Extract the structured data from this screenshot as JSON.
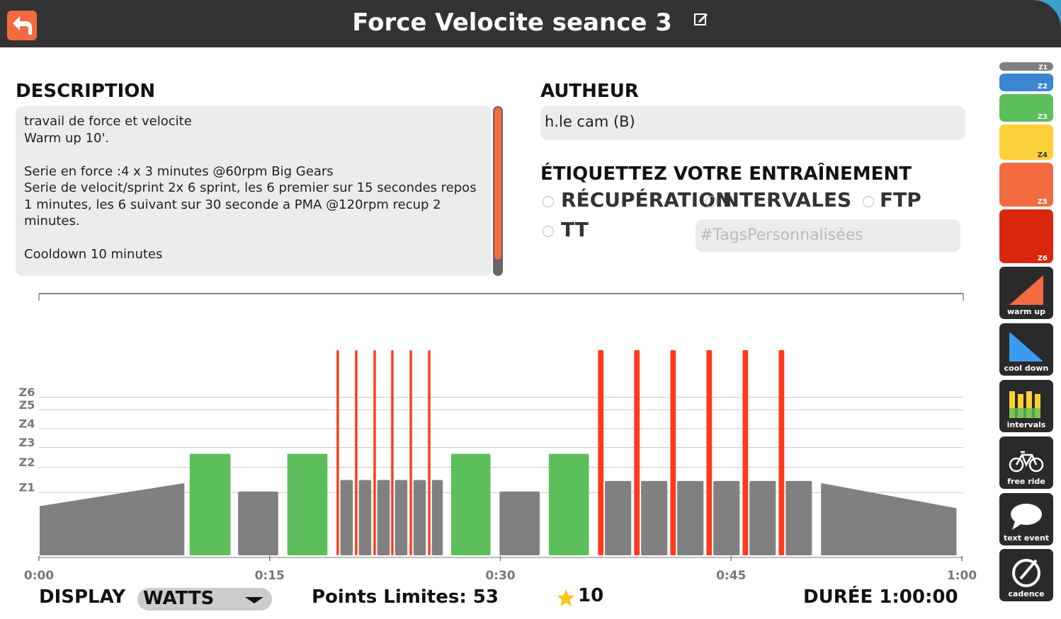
{
  "header": {
    "title": "Force Velocite seance 3"
  },
  "description": {
    "heading": "DESCRIPTION",
    "text": "travail de force et velocite\nWarm up 10'.\n\nSerie en  force :4 x 3 minutes @60rpm Big Gears\nSerie de velocit/sprint  2x 6 sprint, les 6 premier sur 15 secondes repos 1 minutes, les 6 suivant sur 30 seconde a PMA @120rpm recup 2 minutes.\n\nCooldown 10 minutes"
  },
  "author": {
    "heading": "AUTHEUR",
    "name": "h.le cam (B)"
  },
  "tags": {
    "heading": "ÉTIQUETTEZ VOTRE ENTRAÎNEMENT",
    "options": [
      "RÉCUPÉRATION",
      "INTERVALES",
      "FTP",
      "TT"
    ],
    "custom_placeholder": "#TagsPersonnalisées"
  },
  "sidebar": {
    "zones": [
      "Z1",
      "Z2",
      "Z3",
      "Z4",
      "Z5",
      "Z6"
    ],
    "tools": [
      "warm up",
      "cool down",
      "intervals",
      "free ride",
      "text event",
      "cadence"
    ]
  },
  "footer": {
    "display_label": "DISPLAY",
    "display_value": "WATTS",
    "points": "Points Limites: 53",
    "stars": "10",
    "duration": "DURÉE 1:00:00"
  },
  "chart_data": {
    "type": "workout",
    "xlim": [
      0,
      60
    ],
    "xticks": [
      {
        "value": 0,
        "label": "0:00"
      },
      {
        "value": 15,
        "label": "0:15"
      },
      {
        "value": 30,
        "label": "0:30"
      },
      {
        "value": 45,
        "label": "0:45"
      },
      {
        "value": 60,
        "label": "1:00"
      }
    ],
    "ylim": [
      0,
      250
    ],
    "yticks": [
      {
        "value": 60,
        "label": "Z1"
      },
      {
        "value": 84,
        "label": "Z2"
      },
      {
        "value": 103,
        "label": "Z3"
      },
      {
        "value": 121,
        "label": "Z4"
      },
      {
        "value": 139,
        "label": "Z5"
      },
      {
        "value": 151,
        "label": "Z6"
      }
    ],
    "segments": [
      {
        "start": 0,
        "end": 9.5,
        "power": 47,
        "power_end": 69,
        "color": "#808080"
      },
      {
        "start": 9.75,
        "end": 12.5,
        "power": 97,
        "color": "#5cbf5c"
      },
      {
        "start": 12.9,
        "end": 15.6,
        "power": 61,
        "color": "#808080"
      },
      {
        "start": 16.1,
        "end": 18.8,
        "power": 97,
        "color": "#5cbf5c"
      },
      {
        "start": 19.55,
        "end": 20.45,
        "power": 72,
        "color": "#808080"
      },
      {
        "start": 20.75,
        "end": 21.65,
        "power": 72,
        "color": "#808080"
      },
      {
        "start": 21.95,
        "end": 22.85,
        "power": 72,
        "color": "#808080"
      },
      {
        "start": 23.1,
        "end": 24.0,
        "power": 72,
        "color": "#808080"
      },
      {
        "start": 24.3,
        "end": 25.2,
        "power": 72,
        "color": "#808080"
      },
      {
        "start": 25.5,
        "end": 26.3,
        "power": 72,
        "color": "#808080"
      },
      {
        "start": 19.3,
        "end": 19.55,
        "power": 196,
        "color": "#ff3a1a"
      },
      {
        "start": 20.5,
        "end": 20.75,
        "power": 196,
        "color": "#ff3a1a"
      },
      {
        "start": 21.7,
        "end": 21.95,
        "power": 196,
        "color": "#ff3a1a"
      },
      {
        "start": 22.85,
        "end": 23.1,
        "power": 196,
        "color": "#ff3a1a"
      },
      {
        "start": 24.05,
        "end": 24.3,
        "power": 196,
        "color": "#ff3a1a"
      },
      {
        "start": 25.25,
        "end": 25.5,
        "power": 196,
        "color": "#ff3a1a"
      },
      {
        "start": 26.75,
        "end": 29.4,
        "power": 97,
        "color": "#5cbf5c"
      },
      {
        "start": 29.9,
        "end": 32.6,
        "power": 61,
        "color": "#808080"
      },
      {
        "start": 33.1,
        "end": 35.8,
        "power": 97,
        "color": "#5cbf5c"
      },
      {
        "start": 36.75,
        "end": 38.55,
        "power": 71,
        "color": "#808080"
      },
      {
        "start": 39.1,
        "end": 40.9,
        "power": 71,
        "color": "#808080"
      },
      {
        "start": 41.45,
        "end": 43.25,
        "power": 71,
        "color": "#808080"
      },
      {
        "start": 43.8,
        "end": 45.6,
        "power": 71,
        "color": "#808080"
      },
      {
        "start": 46.15,
        "end": 47.95,
        "power": 71,
        "color": "#808080"
      },
      {
        "start": 48.5,
        "end": 50.3,
        "power": 71,
        "color": "#808080"
      },
      {
        "start": 36.3,
        "end": 36.75,
        "power": 196,
        "color": "#ff3a1a"
      },
      {
        "start": 38.65,
        "end": 39.1,
        "power": 196,
        "color": "#ff3a1a"
      },
      {
        "start": 41.0,
        "end": 41.45,
        "power": 196,
        "color": "#ff3a1a"
      },
      {
        "start": 43.35,
        "end": 43.8,
        "power": 196,
        "color": "#ff3a1a"
      },
      {
        "start": 45.7,
        "end": 46.15,
        "power": 196,
        "color": "#ff3a1a"
      },
      {
        "start": 48.05,
        "end": 48.5,
        "power": 196,
        "color": "#ff3a1a"
      },
      {
        "start": 50.8,
        "end": 59.7,
        "power": 69,
        "power_end": 45,
        "color": "#808080"
      }
    ]
  }
}
